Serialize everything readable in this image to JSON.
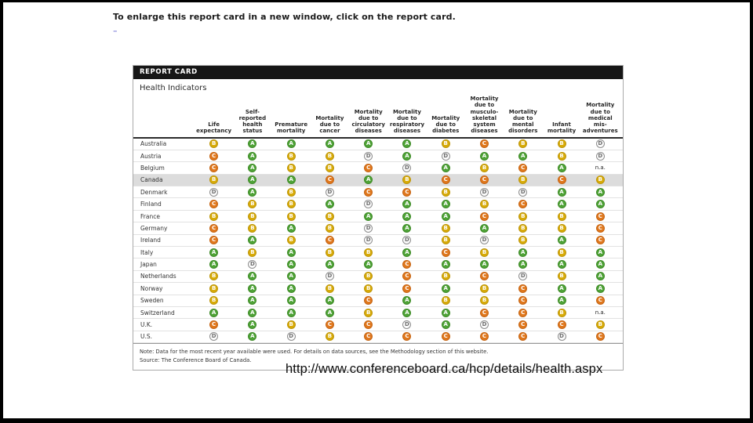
{
  "page": {
    "headline": "To enlarge this report card in a new window, click on the report card.",
    "link_dash": "–",
    "url_caption": "http://www.conferenceboard.ca/hcp/details/health.aspx"
  },
  "report_card": {
    "title": "REPORT CARD",
    "subtitle": "Health Indicators",
    "note": "Note: Data for the most recent year available were used. For details on data sources, see the Methodology section of this website.",
    "source": "Source: The Conference Board of Canada.",
    "grade_colors": {
      "A": "#4fa337",
      "B": "#d8ab08",
      "C": "#e0781d",
      "D": "#fbfbfb"
    },
    "columns": [
      "Life\nexpectancy",
      "Self-\nreported\nhealth\nstatus",
      "Premature\nmortality",
      "Mortality\ndue to\ncancer",
      "Mortality\ndue to\ncirculatory\ndiseases",
      "Mortality\ndue to\nrespiratory\ndiseases",
      "Mortality\ndue to\ndiabetes",
      "Mortality\ndue to\nmusculo-\nskeletal\nsystem\ndiseases",
      "Mortality\ndue to\nmental\ndisorders",
      "Infant\nmortality",
      "Mortality\ndue to\nmedical mis-\nadventures"
    ],
    "rows": [
      {
        "country": "Australia",
        "highlight": false,
        "grades": [
          "B",
          "A",
          "A",
          "A",
          "A",
          "A",
          "B",
          "C",
          "B",
          "B",
          "D"
        ]
      },
      {
        "country": "Austria",
        "highlight": false,
        "grades": [
          "C",
          "A",
          "B",
          "B",
          "D",
          "A",
          "D",
          "A",
          "A",
          "B",
          "D"
        ]
      },
      {
        "country": "Belgium",
        "highlight": false,
        "grades": [
          "C",
          "A",
          "B",
          "B",
          "C",
          "D",
          "A",
          "B",
          "C",
          "A",
          "n.a."
        ]
      },
      {
        "country": "Canada",
        "highlight": true,
        "grades": [
          "B",
          "A",
          "A",
          "C",
          "A",
          "B",
          "C",
          "C",
          "B",
          "C",
          "B"
        ]
      },
      {
        "country": "Denmark",
        "highlight": false,
        "grades": [
          "D",
          "A",
          "B",
          "D",
          "C",
          "C",
          "B",
          "D",
          "D",
          "A",
          "A"
        ]
      },
      {
        "country": "Finland",
        "highlight": false,
        "grades": [
          "C",
          "B",
          "B",
          "A",
          "D",
          "A",
          "A",
          "B",
          "C",
          "A",
          "A"
        ]
      },
      {
        "country": "France",
        "highlight": false,
        "grades": [
          "B",
          "B",
          "B",
          "B",
          "A",
          "A",
          "A",
          "C",
          "B",
          "B",
          "C"
        ]
      },
      {
        "country": "Germany",
        "highlight": false,
        "grades": [
          "C",
          "B",
          "A",
          "B",
          "D",
          "A",
          "B",
          "A",
          "B",
          "B",
          "C"
        ]
      },
      {
        "country": "Ireland",
        "highlight": false,
        "grades": [
          "C",
          "A",
          "B",
          "C",
          "D",
          "D",
          "B",
          "D",
          "B",
          "A",
          "C"
        ]
      },
      {
        "country": "Italy",
        "highlight": false,
        "grades": [
          "A",
          "B",
          "A",
          "B",
          "B",
          "A",
          "C",
          "B",
          "A",
          "B",
          "A"
        ]
      },
      {
        "country": "Japan",
        "highlight": false,
        "grades": [
          "A",
          "D",
          "A",
          "A",
          "A",
          "C",
          "A",
          "A",
          "A",
          "A",
          "A"
        ]
      },
      {
        "country": "Netherlands",
        "highlight": false,
        "grades": [
          "B",
          "A",
          "A",
          "D",
          "B",
          "C",
          "B",
          "C",
          "D",
          "B",
          "A"
        ]
      },
      {
        "country": "Norway",
        "highlight": false,
        "grades": [
          "B",
          "A",
          "A",
          "B",
          "B",
          "C",
          "A",
          "B",
          "C",
          "A",
          "A"
        ]
      },
      {
        "country": "Sweden",
        "highlight": false,
        "grades": [
          "B",
          "A",
          "A",
          "A",
          "C",
          "A",
          "B",
          "B",
          "C",
          "A",
          "C"
        ]
      },
      {
        "country": "Switzerland",
        "highlight": false,
        "grades": [
          "A",
          "A",
          "A",
          "A",
          "B",
          "A",
          "A",
          "C",
          "C",
          "B",
          "n.a."
        ]
      },
      {
        "country": "U.K.",
        "highlight": false,
        "grades": [
          "C",
          "A",
          "B",
          "C",
          "C",
          "D",
          "A",
          "D",
          "C",
          "C",
          "B"
        ]
      },
      {
        "country": "U.S.",
        "highlight": false,
        "grades": [
          "D",
          "A",
          "D",
          "B",
          "C",
          "C",
          "C",
          "C",
          "C",
          "D",
          "C"
        ]
      }
    ]
  }
}
